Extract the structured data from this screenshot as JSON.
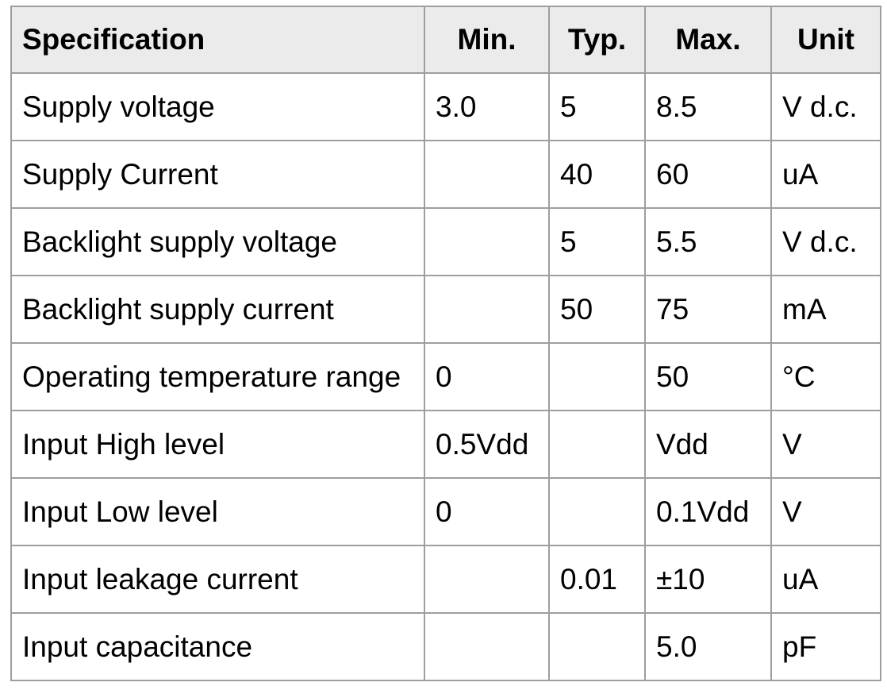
{
  "table": {
    "columns": [
      {
        "key": "specification",
        "label": "Specification"
      },
      {
        "key": "min",
        "label": "Min."
      },
      {
        "key": "typ",
        "label": "Typ."
      },
      {
        "key": "max",
        "label": "Max."
      },
      {
        "key": "unit",
        "label": "Unit"
      }
    ],
    "rows": [
      {
        "specification": "Supply voltage",
        "min": "3.0",
        "typ": "",
        "max": "8.5",
        "unit": "V d.c."
      },
      {
        "specification": "Supply Current",
        "min": "",
        "typ": "40",
        "max": "60",
        "unit": "uA"
      },
      {
        "specification": "Backlight supply voltage",
        "min": "",
        "typ": "5",
        "max": "5.5",
        "unit": "V d.c."
      },
      {
        "specification": "Backlight supply current",
        "min": "",
        "typ": "50",
        "max": "75",
        "unit": "mA"
      },
      {
        "specification": "Operating temperature range",
        "min": "0",
        "typ": "",
        "max": "50",
        "unit": "°C"
      },
      {
        "specification": "Input High level",
        "min": "0.5Vdd",
        "typ": "",
        "max": "Vdd",
        "unit": "V"
      },
      {
        "specification": "Input Low level",
        "min": "0",
        "typ": "",
        "max": "0.1Vdd",
        "unit": "V"
      },
      {
        "specification": "Input leakage current",
        "min": "",
        "typ": "0.01",
        "max": "±10",
        "unit": "uA"
      },
      {
        "specification": "Input capacitance",
        "min": "",
        "typ": "",
        "max": "5.0",
        "unit": "pF"
      }
    ],
    "row1_typ_override": "5",
    "colors": {
      "header_bg": "#ebebeb",
      "border": "#9e9e9e",
      "text": "#000000",
      "page_bg": "#ffffff"
    }
  }
}
